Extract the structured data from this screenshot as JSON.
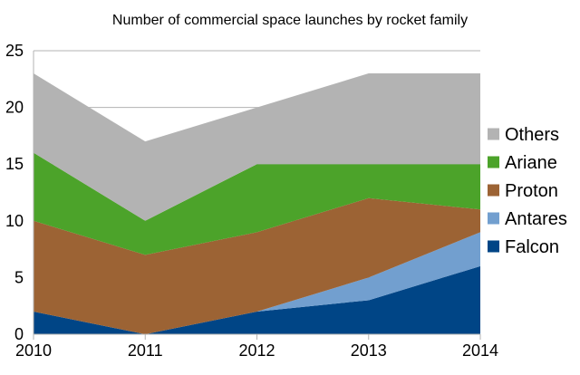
{
  "chart_data": {
    "type": "area",
    "stacked": true,
    "title": "Number of commercial space launches by rocket family",
    "xlabel": "",
    "ylabel": "",
    "x": [
      2010,
      2011,
      2012,
      2013,
      2014
    ],
    "x_ticks": [
      "2010",
      "2011",
      "2012",
      "2013",
      "2014"
    ],
    "ylim": [
      0,
      25
    ],
    "y_ticks": [
      "0",
      "5",
      "10",
      "15",
      "20",
      "25"
    ],
    "grid": "horizontal",
    "legend_position": "right",
    "series": [
      {
        "name": "Falcon",
        "color": "#004586",
        "values": [
          2,
          0,
          2,
          3,
          6
        ]
      },
      {
        "name": "Antares",
        "color": "#729fcf",
        "values": [
          0,
          0,
          0,
          2,
          3
        ]
      },
      {
        "name": "Proton",
        "color": "#9c6334",
        "values": [
          8,
          7,
          7,
          7,
          2
        ]
      },
      {
        "name": "Ariane",
        "color": "#4ca32a",
        "values": [
          6,
          3,
          6,
          3,
          4
        ]
      },
      {
        "name": "Others",
        "color": "#b3b3b3",
        "values": [
          7,
          7,
          5,
          8,
          8
        ]
      }
    ]
  }
}
